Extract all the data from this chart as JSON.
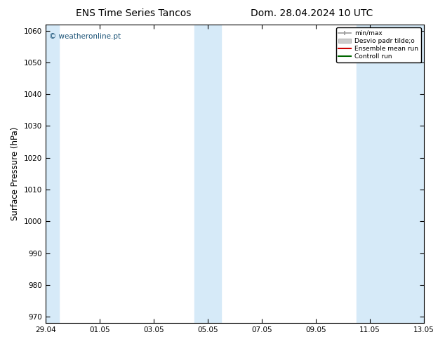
{
  "title_left": "ENS Time Series Tancos",
  "title_right": "Dom. 28.04.2024 10 UTC",
  "ylabel": "Surface Pressure (hPa)",
  "ylim": [
    968,
    1062
  ],
  "yticks": [
    970,
    980,
    990,
    1000,
    1010,
    1020,
    1030,
    1040,
    1050,
    1060
  ],
  "xtick_labels": [
    "29.04",
    "01.05",
    "03.05",
    "05.05",
    "07.05",
    "09.05",
    "11.05",
    "13.05"
  ],
  "xtick_positions": [
    0,
    2,
    4,
    6,
    8,
    10,
    12,
    14
  ],
  "shaded_regions": [
    {
      "xstart": -0.5,
      "xend": 0.5,
      "color": "#d6eaf8"
    },
    {
      "xstart": 5.5,
      "xend": 6.5,
      "color": "#d6eaf8"
    },
    {
      "xstart": 11.5,
      "xend": 14.2,
      "color": "#d6eaf8"
    }
  ],
  "watermark_text": "© weatheronline.pt",
  "watermark_color": "#1a5276",
  "legend_entries": [
    {
      "label": "min/max",
      "color": "#999999",
      "lw": 1.5
    },
    {
      "label": "Desvio padr tilde;o",
      "color": "#cccccc",
      "lw": 8
    },
    {
      "label": "Ensemble mean run",
      "color": "#cc0000",
      "lw": 1.5
    },
    {
      "label": "Controll run",
      "color": "#006600",
      "lw": 1.5
    }
  ],
  "bg_color": "#ffffff",
  "plot_bg_color": "#ffffff",
  "spine_color": "#000000",
  "title_fontsize": 10,
  "tick_fontsize": 7.5,
  "ylabel_fontsize": 8.5
}
